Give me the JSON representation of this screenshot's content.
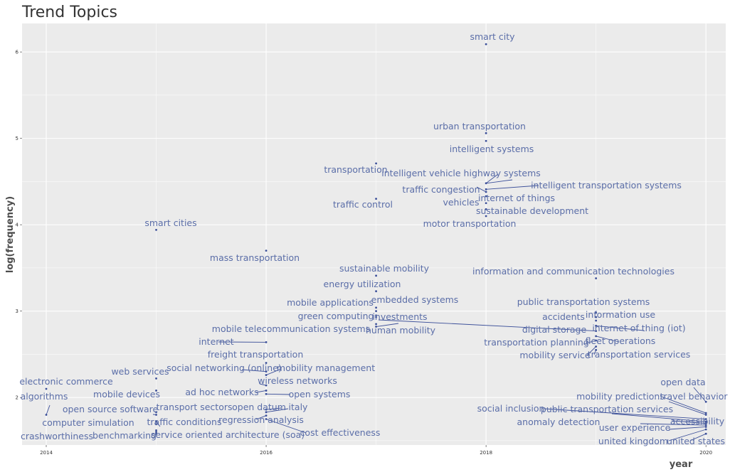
{
  "chart_data": {
    "type": "scatter",
    "title": "Trend Topics",
    "xlabel": "year",
    "ylabel": "log(frequency)",
    "xlim": [
      2013.78,
      2020.18
    ],
    "ylim": [
      1.45,
      6.33
    ],
    "x_ticks": [
      "2014",
      "2016",
      "2018",
      "2020"
    ],
    "y_ticks": [
      "2",
      "3",
      "4",
      "5",
      "6"
    ],
    "grid": true,
    "colors": {
      "panel": "#ebebeb",
      "point": "#3b4f99",
      "label": "#5b6ea8"
    },
    "points": [
      {
        "label": "smart city",
        "x": 2018,
        "y": 6.09
      },
      {
        "label": "urban transportation",
        "x": 2018,
        "y": 5.06
      },
      {
        "label": "intelligent systems",
        "x": 2018,
        "y": 4.97
      },
      {
        "label": "transportation",
        "x": 2017,
        "y": 4.71
      },
      {
        "label": "intelligent vehicle highway systems",
        "x": 2018,
        "y": 4.48
      },
      {
        "label": "intelligent transportation systems",
        "x": 2018,
        "y": 4.41
      },
      {
        "label": "traffic congestion",
        "x": 2018,
        "y": 4.38
      },
      {
        "label": "internet of things",
        "x": 2018,
        "y": 4.33
      },
      {
        "label": "traffic control",
        "x": 2017,
        "y": 4.3
      },
      {
        "label": "vehicles",
        "x": 2018,
        "y": 4.25
      },
      {
        "label": "sustainable development",
        "x": 2018,
        "y": 4.18
      },
      {
        "label": "motor transportation",
        "x": 2018,
        "y": 4.1
      },
      {
        "label": "smart cities",
        "x": 2015,
        "y": 3.94
      },
      {
        "label": "mass transportation",
        "x": 2016,
        "y": 3.7
      },
      {
        "label": "sustainable mobility",
        "x": 2017,
        "y": 3.41
      },
      {
        "label": "information and communication technologies",
        "x": 2019,
        "y": 3.38
      },
      {
        "label": "energy utilization",
        "x": 2017,
        "y": 3.23
      },
      {
        "label": "embedded systems",
        "x": 2017,
        "y": 3.04
      },
      {
        "label": "mobile applications",
        "x": 2017,
        "y": 3.0
      },
      {
        "label": "public transportation systems",
        "x": 2019,
        "y": 2.98
      },
      {
        "label": "green computing",
        "x": 2017,
        "y": 2.95
      },
      {
        "label": "investments",
        "x": 2017,
        "y": 2.93
      },
      {
        "label": "information use",
        "x": 2019,
        "y": 2.93
      },
      {
        "label": "accidents",
        "x": 2019,
        "y": 2.89
      },
      {
        "label": "mobile telecommunication systems",
        "x": 2017,
        "y": 2.85
      },
      {
        "label": "human mobility",
        "x": 2017,
        "y": 2.82
      },
      {
        "label": "internet of thing (iot)",
        "x": 2019,
        "y": 2.83
      },
      {
        "label": "digital storage",
        "x": 2019,
        "y": 2.77
      },
      {
        "label": "fleet operations",
        "x": 2019,
        "y": 2.71
      },
      {
        "label": "internet",
        "x": 2016,
        "y": 2.64
      },
      {
        "label": "transportation planning",
        "x": 2019,
        "y": 2.66
      },
      {
        "label": "mobility service",
        "x": 2019,
        "y": 2.59
      },
      {
        "label": "transportation services",
        "x": 2019,
        "y": 2.55
      },
      {
        "label": "freight transportation",
        "x": 2016,
        "y": 2.4
      },
      {
        "label": "social networking (online)",
        "x": 2016,
        "y": 2.3
      },
      {
        "label": "mobility management",
        "x": 2016,
        "y": 2.26
      },
      {
        "label": "web services",
        "x": 2015,
        "y": 2.22
      },
      {
        "label": "wireless networks",
        "x": 2016,
        "y": 2.14
      },
      {
        "label": "electronic commerce",
        "x": 2014,
        "y": 2.1
      },
      {
        "label": "ad hoc networks",
        "x": 2016,
        "y": 2.08
      },
      {
        "label": "mobile devices",
        "x": 2015,
        "y": 2.08
      },
      {
        "label": "open systems",
        "x": 2016,
        "y": 2.04
      },
      {
        "label": "open data",
        "x": 2020,
        "y": 1.95
      },
      {
        "label": "algorithms",
        "x": 2014,
        "y": 1.8
      },
      {
        "label": "mobility predictions",
        "x": 2020,
        "y": 1.82
      },
      {
        "label": "travel behavior",
        "x": 2020,
        "y": 1.8
      },
      {
        "label": "open datum",
        "x": 2016,
        "y": 1.86
      },
      {
        "label": "italy",
        "x": 2016,
        "y": 1.83
      },
      {
        "label": "transport sectors",
        "x": 2015,
        "y": 1.83
      },
      {
        "label": "open source software",
        "x": 2015,
        "y": 1.8
      },
      {
        "label": "social inclusion",
        "x": 2020,
        "y": 1.75
      },
      {
        "label": "public transportation services",
        "x": 2020,
        "y": 1.72
      },
      {
        "label": "regression analysis",
        "x": 2016,
        "y": 1.79
      },
      {
        "label": "computer simulation",
        "x": 2015,
        "y": 1.69
      },
      {
        "label": "traffic conditions",
        "x": 2015,
        "y": 1.72
      },
      {
        "label": "accessibility",
        "x": 2020,
        "y": 1.7
      },
      {
        "label": "anomaly detection",
        "x": 2020,
        "y": 1.68
      },
      {
        "label": "user experience",
        "x": 2020,
        "y": 1.66
      },
      {
        "label": "cost effectiveness",
        "x": 2016,
        "y": 1.75
      },
      {
        "label": "service oriented architecture (soa)",
        "x": 2015,
        "y": 1.62
      },
      {
        "label": "crashworthiness",
        "x": 2015,
        "y": 1.6
      },
      {
        "label": "benchmarking",
        "x": 2015,
        "y": 1.58
      },
      {
        "label": "united kingdom",
        "x": 2020,
        "y": 1.63
      },
      {
        "label": "united states",
        "x": 2020,
        "y": 1.58
      }
    ]
  }
}
